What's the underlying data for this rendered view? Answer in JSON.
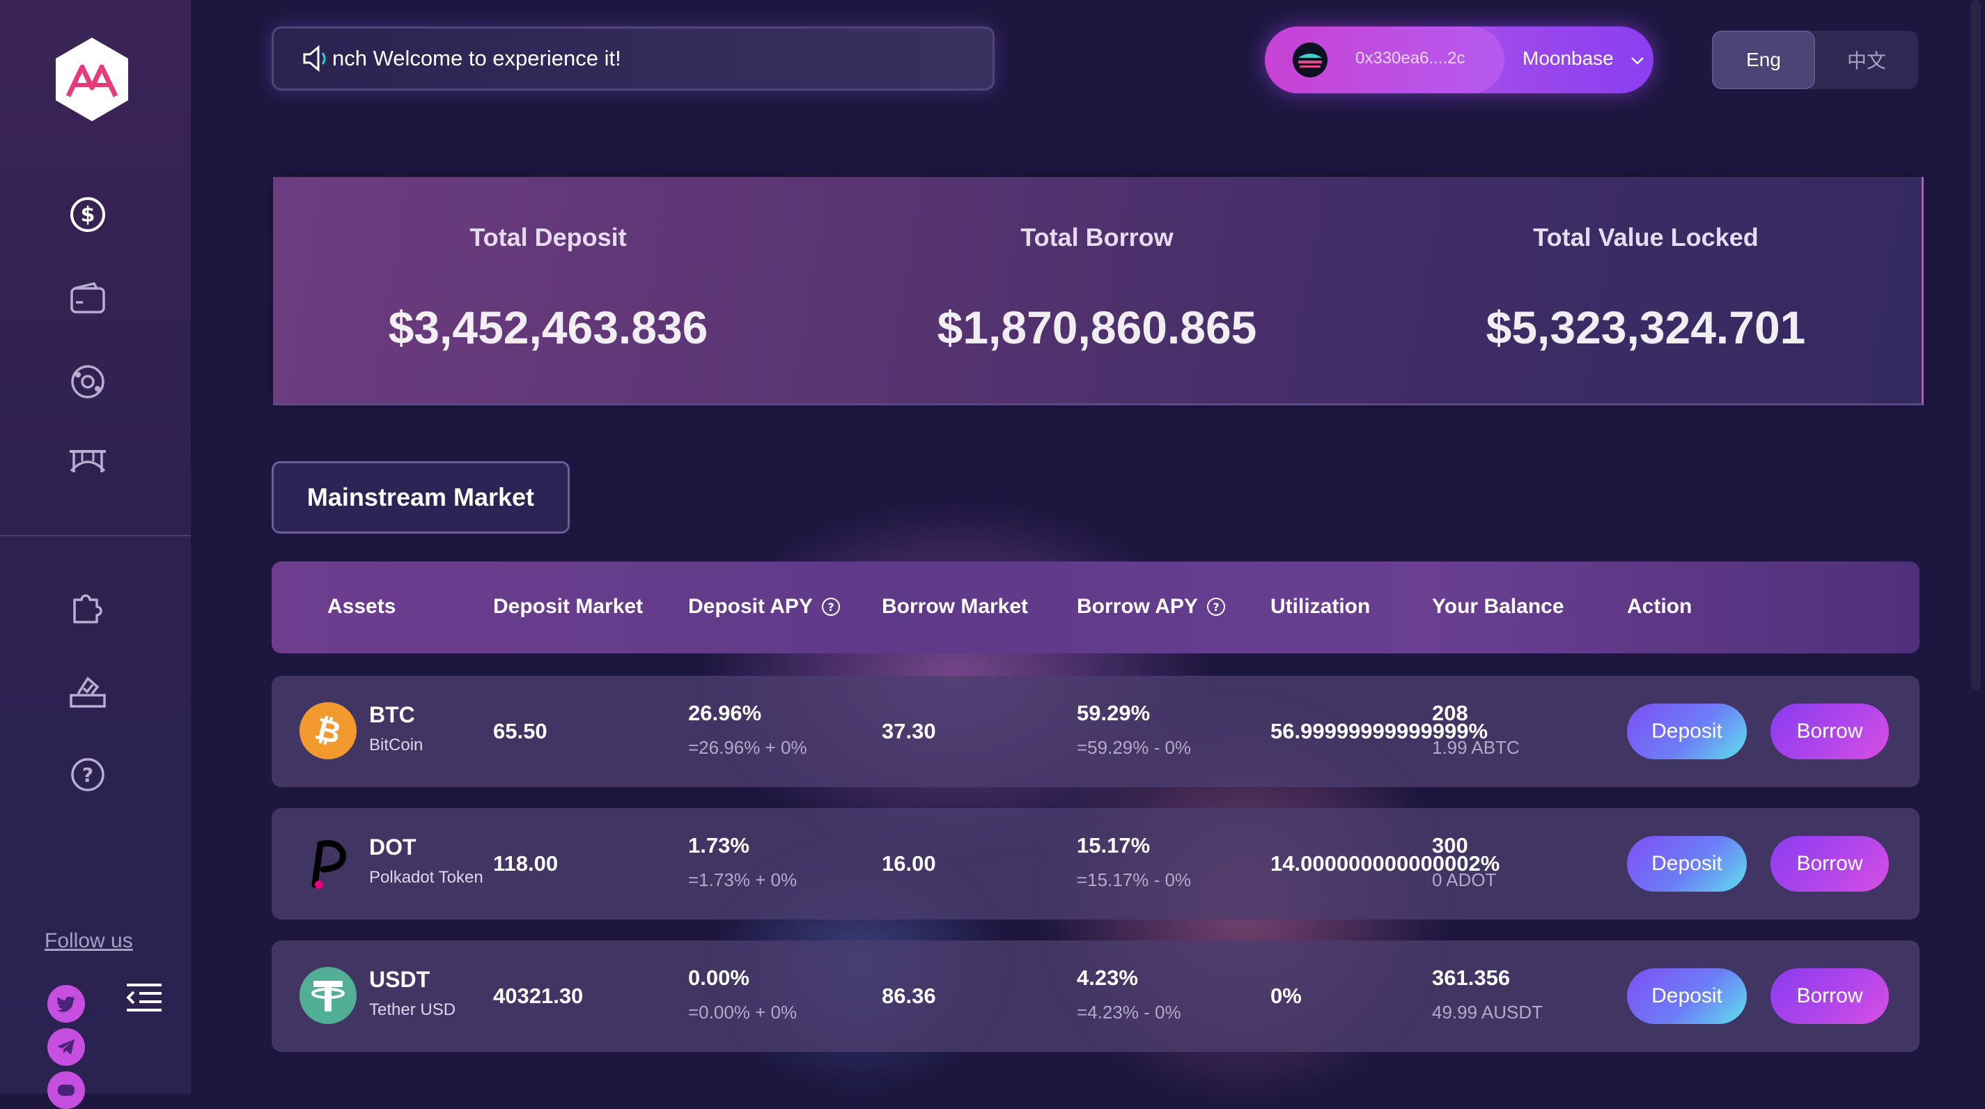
{
  "announcement": {
    "text": "nch Welcome to experience it!"
  },
  "wallet": {
    "address": "0x330ea6....2c",
    "network": "Moonbase"
  },
  "language": {
    "options": [
      "Eng",
      "中文"
    ],
    "selected": "Eng"
  },
  "stats": [
    {
      "label": "Total Deposit",
      "value": "$3,452,463.836"
    },
    {
      "label": "Total Borrow",
      "value": "$1,870,860.865"
    },
    {
      "label": "Total Value Locked",
      "value": "$5,323,324.701"
    }
  ],
  "market_tab": {
    "label": "Mainstream Market"
  },
  "table": {
    "headers": [
      "Assets",
      "Deposit Market",
      "Deposit APY",
      "Borrow Market",
      "Borrow APY",
      "Utilization",
      "Your Balance",
      "Action"
    ],
    "rows": [
      {
        "symbol": "BTC",
        "name": "BitCoin",
        "deposit_market": "65.50",
        "deposit_apy": "26.96%",
        "deposit_apy_detail": "=26.96% + 0%",
        "borrow_market": "37.30",
        "borrow_apy": "59.29%",
        "borrow_apy_detail": "=59.29% - 0%",
        "utilization": "56.99999999999999%",
        "balance": "208",
        "balance_sub": "1.99 ABTC",
        "deposit_label": "Deposit",
        "borrow_label": "Borrow",
        "icon_color": "#f29a2e"
      },
      {
        "symbol": "DOT",
        "name": "Polkadot Token",
        "deposit_market": "118.00",
        "deposit_apy": "1.73%",
        "deposit_apy_detail": "=1.73% + 0%",
        "borrow_market": "16.00",
        "borrow_apy": "15.17%",
        "borrow_apy_detail": "=15.17% - 0%",
        "utilization": "14.000000000000002%",
        "balance": "300",
        "balance_sub": "0 ADOT",
        "deposit_label": "Deposit",
        "borrow_label": "Borrow",
        "icon_color": "#e6007a"
      },
      {
        "symbol": "USDT",
        "name": "Tether USD",
        "deposit_market": "40321.30",
        "deposit_apy": "0.00%",
        "deposit_apy_detail": "=0.00% + 0%",
        "borrow_market": "86.36",
        "borrow_apy": "4.23%",
        "borrow_apy_detail": "=4.23% - 0%",
        "utilization": "0%",
        "balance": "361.356",
        "balance_sub": "49.99 AUSDT",
        "deposit_label": "Deposit",
        "borrow_label": "Borrow",
        "icon_color": "#50af95"
      }
    ]
  },
  "sidebar": {
    "nav_icons": [
      "dollar-icon",
      "wallet-icon",
      "swap-icon",
      "bridge-icon",
      "puzzle-icon",
      "vote-icon",
      "help-icon"
    ],
    "follow_label": "Follow us",
    "socials": [
      "twitter-icon",
      "telegram-icon",
      "discord-icon"
    ]
  },
  "colors": {
    "accent": "#b546ea",
    "background": "#1d1740"
  }
}
